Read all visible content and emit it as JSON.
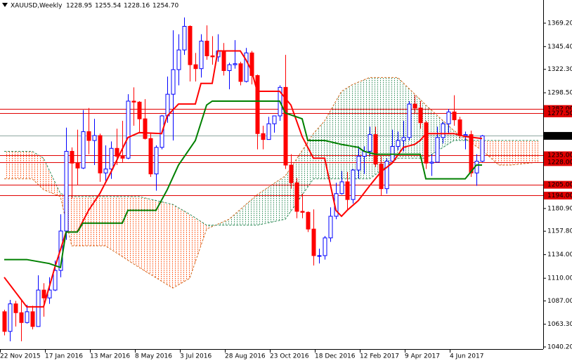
{
  "chart_data": {
    "type": "candlestick",
    "symbol": "XAUUSD,Weekly",
    "header_ohlc": [
      "1228.95",
      "1255.54",
      "1228.16",
      "1254.70"
    ],
    "categories": [
      "22 Nov 2015",
      null,
      null,
      null,
      null,
      null,
      null,
      null,
      "17 Jan 2016",
      null,
      null,
      null,
      null,
      null,
      null,
      null,
      "13 Mar 2016",
      null,
      null,
      null,
      null,
      null,
      null,
      null,
      "8 May 2016",
      null,
      null,
      null,
      null,
      null,
      null,
      null,
      "3 Jul 2016",
      null,
      null,
      null,
      null,
      null,
      null,
      null,
      "28 Aug 2016",
      null,
      null,
      null,
      null,
      null,
      null,
      null,
      "23 Oct 2016",
      null,
      null,
      null,
      null,
      null,
      null,
      null,
      "18 Dec 2016",
      null,
      null,
      null,
      null,
      null,
      null,
      null,
      "12 Feb 2017",
      null,
      null,
      null,
      null,
      null,
      null,
      null,
      "9 Apr 2017",
      null,
      null,
      null,
      null,
      null,
      null,
      null,
      "4 Jun 2017",
      null,
      null,
      null,
      null,
      null
    ],
    "open": [
      1076,
      1056,
      1084,
      1075,
      1065,
      1076,
      1061,
      1098,
      1090,
      1098,
      1118,
      1158,
      1239,
      1227,
      1222,
      1259,
      1250,
      1255,
      1217,
      1221,
      1242,
      1234,
      1232,
      1290,
      1289,
      1272,
      1252,
      1216,
      1243,
      1275,
      1297,
      1322,
      1342,
      1366,
      1327,
      1323,
      1351,
      1336,
      1335,
      1341,
      1321,
      1327,
      1328,
      1310,
      1339,
      1316,
      1257,
      1251,
      1267,
      1275,
      1304,
      1225,
      1207,
      1178,
      1177,
      1160,
      1133,
      1133,
      1151,
      1173,
      1196,
      1208,
      1190,
      1220,
      1234,
      1239,
      1256,
      1226,
      1201,
      1229,
      1244,
      1250,
      1253,
      1287,
      1283,
      1268,
      1227,
      1228,
      1253,
      1267,
      1279,
      1271,
      1255,
      1256,
      1217,
      1228.95
    ],
    "high": [
      1078,
      1088,
      1087,
      1088,
      1083,
      1082,
      1113,
      1105,
      1111,
      1128,
      1175,
      1263,
      1243,
      1261,
      1281,
      1283,
      1272,
      1257,
      1245,
      1249,
      1262,
      1270,
      1297,
      1304,
      1290,
      1292,
      1257,
      1245,
      1276,
      1315,
      1362,
      1358,
      1375,
      1367,
      1339,
      1358,
      1367,
      1356,
      1358,
      1349,
      1329,
      1352,
      1330,
      1344,
      1341,
      1317,
      1265,
      1274,
      1275,
      1306,
      1337,
      1236,
      1212,
      1196,
      1178,
      1180,
      1140,
      1153,
      1182,
      1207,
      1219,
      1218,
      1221,
      1244,
      1244,
      1264,
      1264,
      1234,
      1232,
      1261,
      1259,
      1270,
      1290,
      1296,
      1290,
      1270,
      1236,
      1264,
      1269,
      1282,
      1296,
      1274,
      1259,
      1260,
      1236,
      1255.54
    ],
    "low": [
      1052,
      1046,
      1061,
      1046,
      1064,
      1058,
      1061,
      1071,
      1084,
      1097,
      1111,
      1149,
      1191,
      1205,
      1221,
      1236,
      1225,
      1208,
      1208,
      1211,
      1225,
      1228,
      1231,
      1265,
      1258,
      1251,
      1213,
      1199,
      1241,
      1268,
      1250,
      1306,
      1337,
      1310,
      1310,
      1314,
      1332,
      1327,
      1330,
      1316,
      1302,
      1323,
      1306,
      1309,
      1307,
      1241,
      1241,
      1251,
      1258,
      1270,
      1221,
      1201,
      1171,
      1171,
      1157,
      1123,
      1125,
      1129,
      1147,
      1170,
      1195,
      1180,
      1186,
      1211,
      1216,
      1234,
      1223,
      1194,
      1196,
      1228,
      1240,
      1239,
      1250,
      1278,
      1262,
      1221,
      1214,
      1228,
      1247,
      1257,
      1265,
      1252,
      1241,
      1213,
      1204,
      1228.16
    ],
    "close": [
      1056,
      1084,
      1075,
      1065,
      1076,
      1061,
      1098,
      1090,
      1098,
      1118,
      1158,
      1239,
      1227,
      1222,
      1259,
      1250,
      1255,
      1217,
      1221,
      1242,
      1234,
      1232,
      1290,
      1289,
      1272,
      1252,
      1216,
      1243,
      1275,
      1297,
      1322,
      1342,
      1366,
      1327,
      1323,
      1351,
      1336,
      1335,
      1341,
      1321,
      1327,
      1328,
      1310,
      1339,
      1316,
      1257,
      1251,
      1267,
      1275,
      1304,
      1225,
      1207,
      1178,
      1177,
      1160,
      1133,
      1133,
      1151,
      1173,
      1196,
      1208,
      1190,
      1220,
      1234,
      1239,
      1256,
      1226,
      1201,
      1229,
      1244,
      1250,
      1253,
      1287,
      1283,
      1268,
      1227,
      1228,
      1253,
      1267,
      1279,
      1271,
      1255,
      1256,
      1217,
      1229,
      1254.7
    ],
    "up_color": "#0000ff",
    "down_color": "#ff0000",
    "tenkan": {
      "color": "#ff0000",
      "x": [
        0,
        4,
        7,
        9,
        11,
        13,
        15,
        17,
        19,
        22,
        24,
        28,
        29,
        31,
        34,
        35,
        37,
        38,
        42,
        43,
        44,
        45,
        49,
        51,
        53,
        55,
        57,
        59,
        60,
        61,
        63,
        65,
        67,
        69,
        71,
        73,
        74,
        75,
        80,
        82,
        85
      ],
      "values": [
        1111,
        1081,
        1081,
        1121,
        1157,
        1157,
        1179,
        1196,
        1218,
        1253,
        1258,
        1257,
        1275,
        1287,
        1287,
        1308,
        1308,
        1341,
        1341,
        1332,
        1321,
        1300,
        1300,
        1286,
        1254,
        1232,
        1232,
        1179,
        1173,
        1179,
        1189,
        1204,
        1218,
        1227,
        1243,
        1246,
        1250,
        1257,
        1257,
        1254,
        1252
      ]
    },
    "kijun": {
      "color": "#008000",
      "x": [
        0,
        4,
        8,
        10,
        11,
        13,
        14,
        21,
        22,
        27,
        29,
        31,
        34,
        36,
        37,
        49,
        50,
        53,
        54,
        57,
        60,
        63,
        64,
        66,
        74,
        75,
        82,
        83,
        84,
        85
      ],
      "values": [
        1129,
        1129,
        1125,
        1121,
        1157,
        1157,
        1166,
        1166,
        1179,
        1179,
        1200,
        1225,
        1250,
        1286,
        1290,
        1290,
        1278,
        1272,
        1250,
        1250,
        1246,
        1243,
        1239,
        1236,
        1236,
        1211,
        1211,
        1218,
        1225,
        1225
      ]
    },
    "cloud": {
      "x": [
        0,
        5,
        7,
        10,
        12,
        18,
        24,
        30,
        33,
        36,
        40,
        45,
        50,
        55,
        57,
        60,
        62,
        65,
        70,
        75,
        80,
        83,
        85,
        88,
        90,
        95
      ],
      "span_a": [
        1211,
        1211,
        1200,
        1193,
        1143,
        1143,
        1121,
        1100,
        1110,
        1160,
        1170,
        1195,
        1214,
        1257,
        1270,
        1300,
        1307,
        1314,
        1314,
        1286,
        1260,
        1248,
        1240,
        1225,
        1225,
        1228
      ],
      "span_b": [
        1239,
        1239,
        1232,
        1196,
        1193,
        1193,
        1193,
        1185,
        1175,
        1164,
        1164,
        1164,
        1170,
        1211,
        1211,
        1211,
        1211,
        1211,
        1232,
        1232,
        1250,
        1250,
        1250,
        1250,
        1250,
        1250
      ],
      "span_a_color": "#d2691e",
      "span_b_color": "#2e8b57",
      "up_color": "#2e8b57",
      "down_color": "#ff4500"
    },
    "levels": [
      {
        "value": 1282,
        "label": "1282.00"
      },
      {
        "value": 1277.5,
        "label": "1277.50"
      },
      {
        "value": 1235,
        "label": "1235.00"
      },
      {
        "value": 1228,
        "label": "1228.00"
      },
      {
        "value": 1205,
        "label": "1205.00"
      },
      {
        "value": 1194,
        "label": "1194.00"
      }
    ],
    "level_color": "#e00000",
    "last_price": {
      "value": 1254.7,
      "label": "1254.70"
    },
    "last_price_color": "#8fa8a0",
    "ylim": [
      1038.06,
      1392.75
    ],
    "yticks": [
      {
        "value": 1040.2,
        "label": "1040.20"
      },
      {
        "value": 1063.3,
        "label": "1063.30"
      },
      {
        "value": 1087,
        "label": "1087.00"
      },
      {
        "value": 1110,
        "label": "1110.00"
      },
      {
        "value": 1134,
        "label": "1134.00"
      },
      {
        "value": 1157.8,
        "label": "1157.80"
      },
      {
        "value": 1180.9,
        "label": "1180.90"
      },
      {
        "value": 1298.5,
        "label": "1298.50"
      },
      {
        "value": 1322.3,
        "label": "1322.30"
      },
      {
        "value": 1345.4,
        "label": "1345.40"
      },
      {
        "value": 1369.2,
        "label": "1369.20"
      }
    ]
  }
}
